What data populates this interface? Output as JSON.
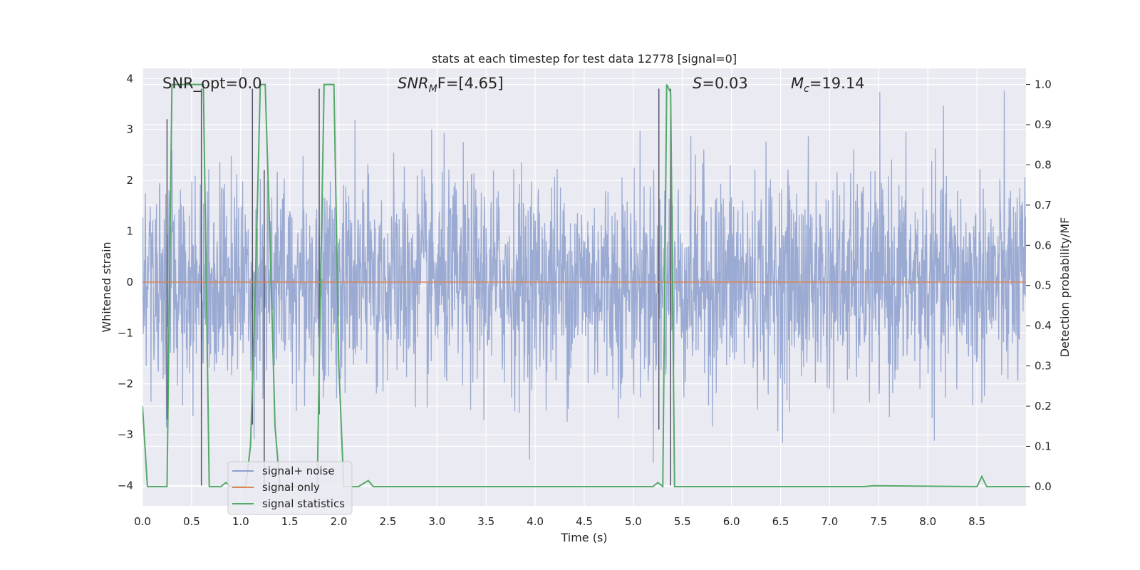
{
  "chart_data": {
    "type": "line",
    "title": "stats at each timestep for test data 12778 [signal=0]",
    "xlabel": "Time (s)",
    "ylabel": "Whitened strain",
    "y2label": "Detection probability/MF",
    "xlim": [
      0.0,
      9.0
    ],
    "ylim": [
      -4.4,
      4.2
    ],
    "y2lim": [
      -0.048,
      1.04
    ],
    "x_ticks": [
      0.0,
      0.5,
      1.0,
      1.5,
      2.0,
      2.5,
      3.0,
      3.5,
      4.0,
      4.5,
      5.0,
      5.5,
      6.0,
      6.5,
      7.0,
      7.5,
      8.0,
      8.5
    ],
    "x_tick_labels": [
      "0.0",
      "0.5",
      "1.0",
      "1.5",
      "2.0",
      "2.5",
      "3.0",
      "3.5",
      "4.0",
      "4.5",
      "5.0",
      "5.5",
      "6.0",
      "6.5",
      "7.0",
      "7.5",
      "8.0",
      "8.5"
    ],
    "y_ticks": [
      4,
      3,
      2,
      1,
      0,
      -1,
      -2,
      -3,
      -4
    ],
    "y_tick_labels": [
      "4",
      "3",
      "2",
      "1",
      "0",
      "−1",
      "−2",
      "−3",
      "−4"
    ],
    "y2_ticks": [
      1.0,
      0.9,
      0.8,
      0.7,
      0.6,
      0.5,
      0.4,
      0.3,
      0.2,
      0.1,
      0.0
    ],
    "y2_tick_labels": [
      "1.0",
      "0.9",
      "0.8",
      "0.7",
      "0.6",
      "0.5",
      "0.4",
      "0.3",
      "0.2",
      "0.1",
      "0.0"
    ],
    "annotations": {
      "snr_opt": "SNR_opt=0.0",
      "snr_mf_label": "SNR",
      "snr_mf_sub": "M",
      "snr_mf_suffix": "F=[4.65]",
      "s_label": "S",
      "s_value": "=0.03",
      "mc_label": "M",
      "mc_sub": "c",
      "mc_value": "=19.14"
    },
    "legend": {
      "placement": "lower-left",
      "entries": [
        {
          "label": "signal+ noise",
          "color": "#8c9fcc"
        },
        {
          "label": "signal only",
          "color": "#dd8452"
        },
        {
          "label": "signal statistics",
          "color": "#55a868"
        }
      ]
    },
    "series": [
      {
        "name": "signal+ noise",
        "axis": "left",
        "color": "#8c9fcc",
        "note": "dense whitened strain noise, amplitude ~±2.5 with spikes up to ~3.9",
        "seed": 12778
      },
      {
        "name": "signal only",
        "axis": "left",
        "color": "#dd8452",
        "x": [
          0.0,
          9.0
        ],
        "y": [
          0.0,
          0.0
        ]
      },
      {
        "name": "signal statistics",
        "axis": "right",
        "color": "#55a868",
        "x": [
          0.0,
          0.05,
          0.25,
          0.3,
          0.62,
          0.68,
          0.8,
          0.85,
          0.9,
          0.95,
          1.05,
          1.1,
          1.15,
          1.2,
          1.25,
          1.3,
          1.35,
          1.4,
          1.45,
          1.5,
          1.6,
          1.7,
          1.78,
          1.8,
          1.85,
          1.95,
          2.0,
          2.05,
          2.15,
          2.2,
          2.3,
          2.35,
          2.45,
          5.2,
          5.25,
          5.3,
          5.34,
          5.38,
          5.42,
          7.35,
          7.45,
          8.5,
          8.55,
          8.6,
          8.7,
          9.0
        ],
        "y": [
          0.2,
          0.0,
          0.0,
          1.0,
          1.0,
          0.0,
          0.0,
          0.01,
          0.0,
          0.0,
          0.0,
          0.1,
          0.5,
          1.0,
          1.0,
          0.6,
          0.15,
          0.0,
          0.0,
          0.0,
          0.0,
          0.0,
          0.0,
          0.3,
          1.0,
          1.0,
          0.3,
          0.0,
          0.0,
          0.0,
          0.015,
          0.0,
          0.0,
          0.0,
          0.01,
          0.0,
          1.0,
          0.98,
          0.0,
          0.0,
          0.002,
          0.0,
          0.025,
          0.0,
          0.0,
          0.0
        ]
      }
    ],
    "vertical_markers": [
      {
        "x": 0.25,
        "y_top": 3.2,
        "y_bottom": -2.7
      },
      {
        "x": 0.6,
        "y_top": 3.8,
        "y_bottom": -4.0
      },
      {
        "x": 1.12,
        "y_top": 3.8,
        "y_bottom": -2.8
      },
      {
        "x": 1.24,
        "y_top": 2.2,
        "y_bottom": -4.0
      },
      {
        "x": 1.8,
        "y_top": 3.8,
        "y_bottom": -2.6
      },
      {
        "x": 5.26,
        "y_top": 3.8,
        "y_bottom": -2.9
      },
      {
        "x": 5.38,
        "y_top": 3.8,
        "y_bottom": -4.0
      }
    ]
  }
}
